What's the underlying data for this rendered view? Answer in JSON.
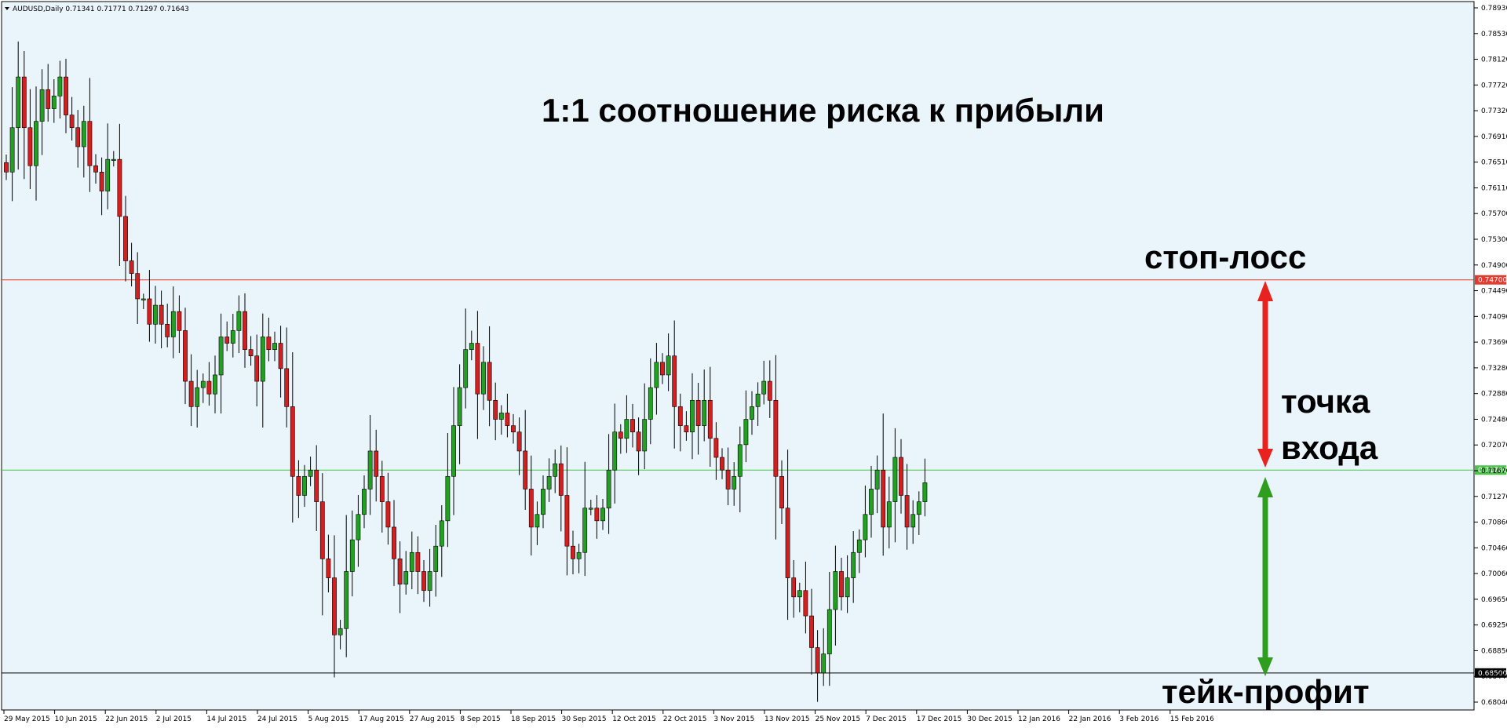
{
  "chart_data": {
    "type": "candlestick",
    "symbol_header": "AUDUSD,Daily  0.71341 0.71771 0.71297 0.71643",
    "title": "1:1 соотношение риска к прибыли",
    "ylim": [
      0.6804,
      0.7899
    ],
    "y_ticks": [
      "0.78930",
      "0.78530",
      "0.78120",
      "0.77720",
      "0.77320",
      "0.76910",
      "0.76510",
      "0.76110",
      "0.75700",
      "0.75300",
      "0.74900",
      "0.74490",
      "0.74090",
      "0.73690",
      "0.73280",
      "0.72880",
      "0.72480",
      "0.72070",
      "0.71670",
      "0.71270",
      "0.70860",
      "0.70460",
      "0.70060",
      "0.69650",
      "0.69250",
      "0.68850",
      "0.68440",
      "0.68040"
    ],
    "x_ticks": [
      "29 May 2015",
      "10 Jun 2015",
      "22 Jun 2015",
      "2 Jul 2015",
      "14 Jul 2015",
      "24 Jul 2015",
      "5 Aug 2015",
      "17 Aug 2015",
      "27 Aug 2015",
      "8 Sep 2015",
      "18 Sep 2015",
      "30 Sep 2015",
      "12 Oct 2015",
      "22 Oct 2015",
      "3 Nov 2015",
      "13 Nov 2015",
      "25 Nov 2015",
      "7 Dec 2015",
      "17 Dec 2015",
      "30 Dec 2015",
      "12 Jan 2016",
      "22 Jan 2016",
      "3 Feb 2016",
      "15 Feb 2016"
    ],
    "levels": [
      {
        "label": "стоп-лосс",
        "price": 0.747,
        "price_tag": "0.74700",
        "color": "#e03c31"
      },
      {
        "label": "точка входа",
        "price": 0.717,
        "price_tag": "0.71700",
        "color": "#4cc44c"
      },
      {
        "label": "тейк-профит",
        "price": 0.685,
        "price_tag": "0.68500",
        "color": "#000000"
      }
    ],
    "annotations": {
      "stop_loss": "стоп-лосс",
      "entry_line1": "точка",
      "entry_line2": "входа",
      "take_profit": "тейк-профит"
    },
    "closes": [
      0.764,
      0.771,
      0.779,
      0.771,
      0.765,
      0.772,
      0.777,
      0.774,
      0.776,
      0.779,
      0.773,
      0.771,
      0.768,
      0.772,
      0.765,
      0.764,
      0.761,
      0.766,
      0.766,
      0.757,
      0.75,
      0.748,
      0.744,
      0.744,
      0.74,
      0.743,
      0.74,
      0.738,
      0.742,
      0.739,
      0.731,
      0.727,
      0.73,
      0.731,
      0.729,
      0.732,
      0.738,
      0.737,
      0.739,
      0.742,
      0.736,
      0.735,
      0.731,
      0.738,
      0.736,
      0.737,
      0.733,
      0.727,
      0.716,
      0.713,
      0.716,
      0.717,
      0.712,
      0.703,
      0.7,
      0.691,
      0.692,
      0.701,
      0.706,
      0.71,
      0.714,
      0.72,
      0.716,
      0.712,
      0.708,
      0.703,
      0.699,
      0.701,
      0.704,
      0.701,
      0.698,
      0.701,
      0.705,
      0.709,
      0.716,
      0.724,
      0.73,
      0.736,
      0.737,
      0.729,
      0.734,
      0.728,
      0.725,
      0.726,
      0.724,
      0.723,
      0.72,
      0.714,
      0.708,
      0.71,
      0.714,
      0.716,
      0.718,
      0.713,
      0.705,
      0.703,
      0.704,
      0.711,
      0.711,
      0.709,
      0.711,
      0.717,
      0.723,
      0.722,
      0.725,
      0.723,
      0.72,
      0.725,
      0.73,
      0.734,
      0.732,
      0.735,
      0.727,
      0.724,
      0.723,
      0.728,
      0.724,
      0.728,
      0.722,
      0.719,
      0.717,
      0.714,
      0.716,
      0.721,
      0.725,
      0.727,
      0.729,
      0.731,
      0.728,
      0.716,
      0.711,
      0.7,
      0.697,
      0.698,
      0.694,
      0.689,
      0.685,
      0.688,
      0.695,
      0.701,
      0.697,
      0.7,
      0.704,
      0.706,
      0.71,
      0.714,
      0.717,
      0.708,
      0.712,
      0.719,
      0.713,
      0.708,
      0.71,
      0.712,
      0.715
    ]
  }
}
